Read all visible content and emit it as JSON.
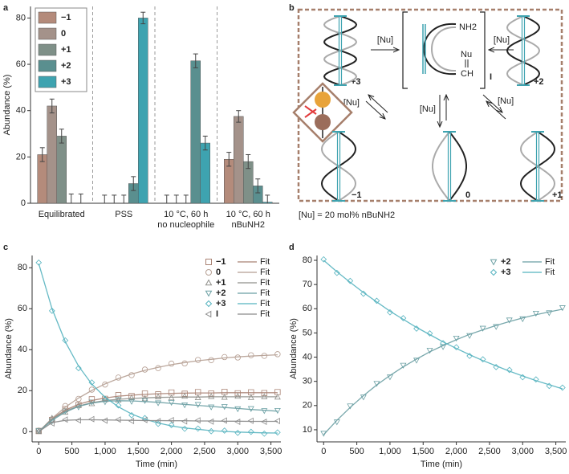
{
  "panel_labels": [
    "a",
    "b",
    "c",
    "d"
  ],
  "chart_data": [
    {
      "type": "bar",
      "ylabel": "Abundance (%)",
      "categories": [
        [
          "Equilibrated"
        ],
        [
          "PSS"
        ],
        [
          "10 °C, 60 h",
          "no nucleophile"
        ],
        [
          "10 °C, 60 h",
          "nBuNH2"
        ]
      ],
      "ylim": [
        0,
        85
      ],
      "yticks": [
        0,
        20,
        40,
        60,
        80
      ],
      "legend": "top-left",
      "series": [
        {
          "name": "−1",
          "color": "#b48b7b",
          "values": [
            21,
            0,
            0,
            19
          ],
          "errors": [
            3,
            3.5,
            3.5,
            3
          ]
        },
        {
          "name": "0",
          "color": "#a4928a",
          "values": [
            42,
            0,
            0,
            37.5
          ],
          "errors": [
            3,
            3.5,
            3.5,
            2.5
          ]
        },
        {
          "name": "+1",
          "color": "#7f9088",
          "values": [
            29,
            0,
            0,
            18
          ],
          "errors": [
            3,
            3.5,
            3.5,
            3
          ]
        },
        {
          "name": "+2",
          "color": "#5a8f8f",
          "values": [
            0,
            8.5,
            61.5,
            7.5
          ],
          "errors": [
            4,
            3,
            3,
            3
          ]
        },
        {
          "name": "+3",
          "color": "#3ea3b0",
          "values": [
            0,
            80,
            26,
            0.5
          ],
          "errors": [
            4,
            2.5,
            3,
            3
          ]
        }
      ]
    },
    {
      "type": "scatter",
      "xlabel": "Time (min)",
      "ylabel": "Abundance (%)",
      "legend": "top-right",
      "x": [
        0,
        200,
        400,
        600,
        800,
        1000,
        1200,
        1400,
        1600,
        1800,
        2000,
        2200,
        2400,
        2600,
        2800,
        3000,
        3200,
        3400,
        3600
      ],
      "xlim": [
        -100,
        3650
      ],
      "xticks": [
        0,
        500,
        {
          "value": 1000,
          "label": "1,000"
        },
        {
          "value": 1500,
          "label": "1,500"
        },
        {
          "value": 2000,
          "label": "2,000"
        },
        {
          "value": 2500,
          "label": "2,500"
        },
        {
          "value": 3000,
          "label": "3,000"
        },
        {
          "value": 3500,
          "label": "3,500"
        }
      ],
      "ylim": [
        -5,
        86
      ],
      "yticks": [
        0,
        20,
        40,
        60,
        80
      ],
      "series": [
        {
          "name": "−1",
          "marker": "square",
          "color": "#a98273",
          "values": [
            0.3,
            5.7,
            11,
            13,
            15.8,
            16,
            17.8,
            17.4,
            18.6,
            18.2,
            19.1,
            18.5,
            19.3,
            18.6,
            19.4,
            18.7,
            19.2,
            18.8,
            19.3
          ],
          "fit": {
            "name": "Fit",
            "values": [
              0,
              6.3,
              10.5,
              13.3,
              15.2,
              16.4,
              17.3,
              17.8,
              18.2,
              18.5,
              18.7,
              18.8,
              18.9,
              18.9,
              19,
              19,
              19,
              19,
              19
            ]
          }
        },
        {
          "name": "0",
          "marker": "circle",
          "color": "#b59e92",
          "values": [
            0.5,
            6,
            12.5,
            16,
            20.5,
            23,
            26.4,
            27.6,
            30.3,
            31,
            33.2,
            33.3,
            35,
            34.9,
            36.4,
            36.2,
            37.3,
            37,
            37.8
          ],
          "fit": {
            "name": "Fit",
            "values": [
              0,
              6.5,
              11.9,
              16.4,
              20.1,
              23.3,
              25.9,
              28.1,
              29.9,
              31.4,
              32.7,
              33.7,
              34.6,
              35.3,
              36,
              36.5,
              36.9,
              37.2,
              37.5
            ]
          }
        },
        {
          "name": "+1",
          "marker": "triangle-up",
          "color": "#8f8f8a",
          "values": [
            0.2,
            6.6,
            9.5,
            12.9,
            13.7,
            15.6,
            15.4,
            16.6,
            16.1,
            17,
            16.5,
            17.3,
            16.6,
            17.2,
            16.8,
            17.3,
            16.7,
            17.1,
            16.9
          ],
          "fit": {
            "name": "Fit",
            "values": [
              0,
              6.1,
              10,
              12.5,
              14.1,
              15.2,
              15.8,
              16.2,
              16.5,
              16.7,
              16.8,
              16.9,
              16.9,
              17,
              17,
              17,
              17,
              17,
              17
            ]
          }
        },
        {
          "name": "+2",
          "marker": "triangle-down",
          "color": "#6a9fa3",
          "values": [
            0.4,
            5.1,
            10,
            12,
            14.4,
            14.5,
            15.6,
            14.7,
            15.1,
            14,
            14.2,
            13,
            13.2,
            12,
            12.2,
            11.1,
            11.2,
            10.2,
            10.3
          ],
          "fit": {
            "name": "Fit",
            "values": [
              0,
              5.5,
              9.5,
              12.3,
              13.9,
              14.8,
              15.1,
              15,
              14.7,
              14.3,
              13.8,
              13.3,
              12.8,
              12.3,
              11.8,
              11.3,
              10.8,
              10.4,
              10
            ]
          }
        },
        {
          "name": "+3",
          "marker": "diamond",
          "color": "#55b3bf",
          "values": [
            82.5,
            59,
            44.5,
            31,
            24,
            16,
            12.8,
            8,
            6.6,
            3.8,
            3.2,
            1.4,
            1.5,
            0.2,
            0.5,
            -0.6,
            -0.1,
            -1,
            -0.4
          ],
          "fit": {
            "name": "Fit",
            "values": [
              82,
              60,
              43.9,
              32,
              23.2,
              16.8,
              12.1,
              8.6,
              6.1,
              4.2,
              2.8,
              1.8,
              1.1,
              0.5,
              0.1,
              -0.2,
              -0.4,
              -0.6,
              -0.7
            ]
          }
        },
        {
          "name": "I",
          "marker": "triangle-left",
          "color": "#8a8a8a",
          "values": [
            0.3,
            4,
            5.9,
            5.5,
            6.1,
            5.4,
            5.9,
            5.2,
            5.7,
            5.1,
            5.6,
            5,
            5.5,
            4.9,
            5.4,
            4.8,
            5.3,
            4.8,
            5.2
          ],
          "fit": {
            "name": "Fit",
            "values": [
              0,
              4.4,
              5.5,
              5.8,
              5.8,
              5.7,
              5.6,
              5.5,
              5.4,
              5.4,
              5.3,
              5.3,
              5.2,
              5.2,
              5.1,
              5.1,
              5,
              5,
              5
            ]
          }
        }
      ]
    },
    {
      "type": "scatter",
      "xlabel": "Time (min)",
      "ylabel": "Abundance (%)",
      "legend": "top-right",
      "x": [
        0,
        200,
        400,
        600,
        800,
        1000,
        1200,
        1400,
        1600,
        1800,
        2000,
        2200,
        2400,
        2600,
        2800,
        3000,
        3200,
        3400,
        3600
      ],
      "xlim": [
        -100,
        3650
      ],
      "xticks": [
        0,
        500,
        {
          "value": 1000,
          "label": "1,000"
        },
        {
          "value": 1500,
          "label": "1,500"
        },
        {
          "value": 2000,
          "label": "2,000"
        },
        {
          "value": 2500,
          "label": "2,500"
        },
        {
          "value": 3000,
          "label": "3,000"
        },
        {
          "value": 3500,
          "label": "3,500"
        }
      ],
      "ylim": [
        5,
        82
      ],
      "yticks": [
        10,
        20,
        30,
        40,
        50,
        60,
        70,
        80
      ],
      "series": [
        {
          "name": "+2",
          "marker": "triangle-down",
          "color": "#6a9fa3",
          "values": [
            8.5,
            13.2,
            19.8,
            23.5,
            29.1,
            31.8,
            36.6,
            38.7,
            42.8,
            44.3,
            47.8,
            48.9,
            51.9,
            52.6,
            55.3,
            55.8,
            58.1,
            58.3,
            60.4
          ],
          "fit": {
            "name": "Fit",
            "values": [
              8,
              13.9,
              19.2,
              24.1,
              28.5,
              32.4,
              36,
              39.2,
              42.2,
              44.8,
              47.2,
              49.4,
              51.3,
              53.1,
              54.7,
              56.2,
              57.5,
              58.7,
              59.8
            ]
          }
        },
        {
          "name": "+3",
          "marker": "diamond",
          "color": "#55b3bf",
          "values": [
            80.4,
            74.8,
            71.5,
            66.2,
            63.3,
            58.5,
            56.1,
            51.8,
            49.8,
            45.8,
            44.1,
            40.5,
            39.1,
            35.9,
            34.7,
            31.7,
            30.8,
            28.1,
            27.4
          ],
          "fit": {
            "name": "Fit",
            "values": [
              80,
              75.3,
              70.9,
              66.7,
              62.8,
              59,
              55.6,
              52.3,
              49.3,
              46.3,
              43.6,
              41,
              38.6,
              36.4,
              34.2,
              32.2,
              30.3,
              28.6,
              26.9
            ]
          }
        }
      ]
    }
  ],
  "diagram": {
    "arrow_labels": [
      "[Nu]",
      "[Nu]",
      "[Nu]",
      "[Nu]",
      "[Nu]"
    ],
    "intermediate": {
      "amine": "NH2",
      "nucleophile": "Nu",
      "imine": "CH",
      "label": "I"
    },
    "states": [
      "+3",
      "+2",
      "−1",
      "0",
      "+1"
    ],
    "caption": "[Nu] = 20 mol% nBuNH2"
  }
}
